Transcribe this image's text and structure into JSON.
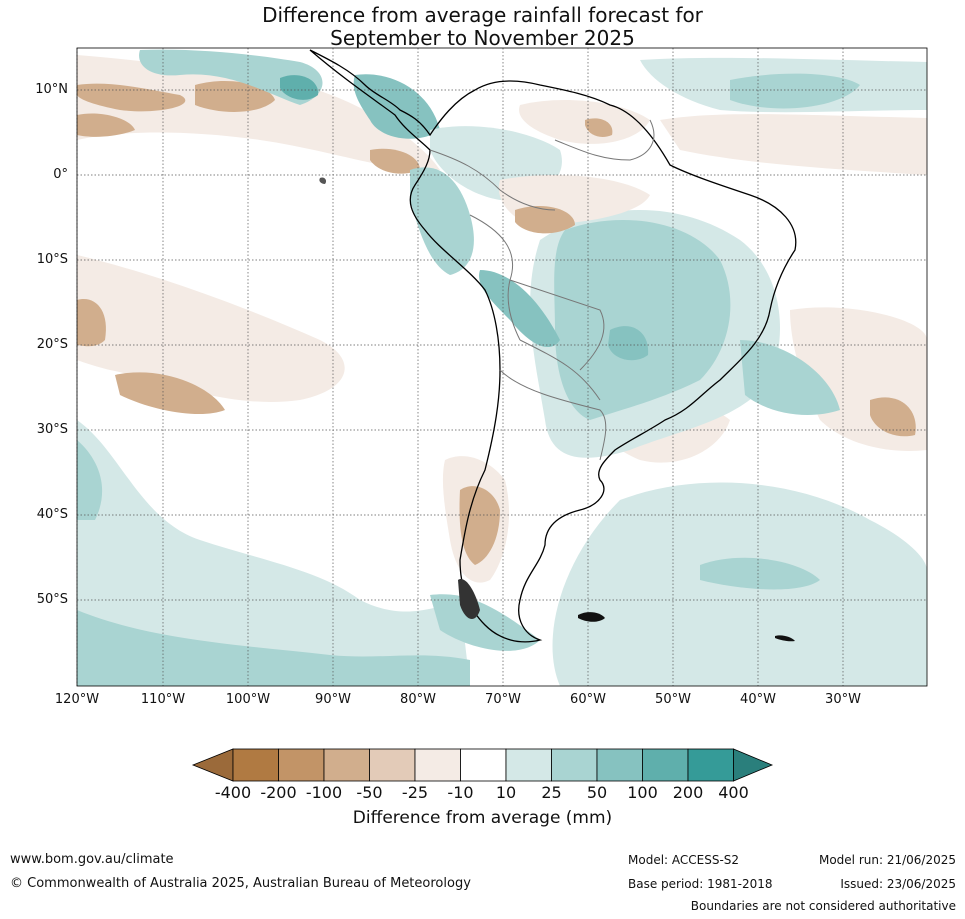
{
  "title_line1": "Difference from average rainfall forecast for",
  "title_line2": "September to November 2025",
  "lat_labels": [
    "10°N",
    "0°",
    "10°S",
    "20°S",
    "30°S",
    "40°S",
    "50°S"
  ],
  "lon_labels": [
    "120°W",
    "110°W",
    "100°W",
    "90°W",
    "80°W",
    "70°W",
    "60°W",
    "50°W",
    "40°W",
    "30°W"
  ],
  "colorbar": {
    "title": "Difference from average (mm)",
    "ticks": [
      "-400",
      "-200",
      "-100",
      "-50",
      "-25",
      "-10",
      "10",
      "25",
      "50",
      "100",
      "200",
      "400"
    ],
    "colors": [
      "#9b6a3a",
      "#b07a42",
      "#c29467",
      "#d1ae8d",
      "#e3cbb8",
      "#f4ebe5",
      "#ffffff",
      "#d4e8e7",
      "#a9d4d2",
      "#86c2c0",
      "#5fafac",
      "#359b98",
      "#2a7f7c"
    ]
  },
  "footer": {
    "website": "www.bom.gov.au/climate",
    "copyright": "© Commonwealth of Australia 2025, Australian Bureau of Meteorology",
    "model": "Model: ACCESS-S2",
    "base_period": "Base period: 1981-2018",
    "model_run": "Model run: 21/06/2025",
    "issued": "Issued: 23/06/2025",
    "disclaimer": "Boundaries are not considered authoritative"
  }
}
